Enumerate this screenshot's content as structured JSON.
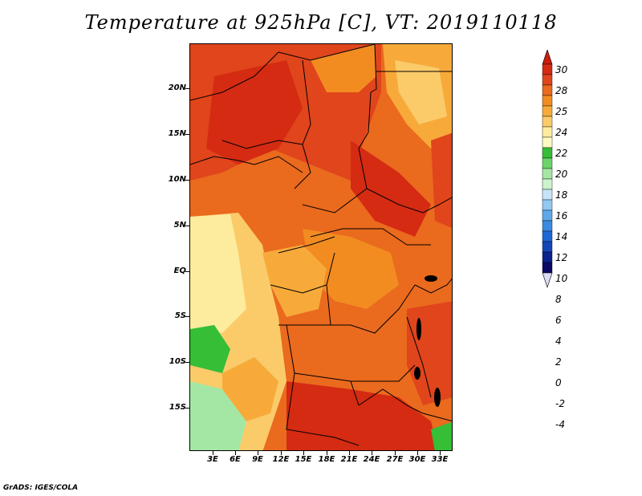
{
  "title": "Temperature at 925hPa [C], VT: 2019110118",
  "footer": "GrADS: IGES/COLA",
  "y_axis_labels": [
    "20N",
    "15N",
    "10N",
    "5N",
    "EQ",
    "5S",
    "10S",
    "15S"
  ],
  "x_axis_labels": [
    "3E",
    "6E",
    "9E",
    "12E",
    "15E",
    "18E",
    "21E",
    "24E",
    "27E",
    "30E",
    "33E"
  ],
  "colorbar": {
    "labels": [
      "30",
      "28",
      "25",
      "24",
      "22",
      "20",
      "18",
      "16",
      "14",
      "12",
      "10",
      "8",
      "6",
      "4",
      "2",
      "0",
      "-2",
      "-4"
    ],
    "colors": [
      "#d42b12",
      "#e0451c",
      "#ea6a1e",
      "#f28c21",
      "#f7aa3a",
      "#fbcb6a",
      "#fdec9e",
      "#fffac2",
      "#35be36",
      "#6bd46b",
      "#a4e7a4",
      "#cdf3cd",
      "#c6e4f7",
      "#91c9f1",
      "#5fa9ea",
      "#3c8be2",
      "#1e68d6",
      "#1346b8",
      "#0b238c",
      "#0a0a66"
    ],
    "top_color": "#c81e10",
    "bottom_color": "#dddcf4"
  }
}
